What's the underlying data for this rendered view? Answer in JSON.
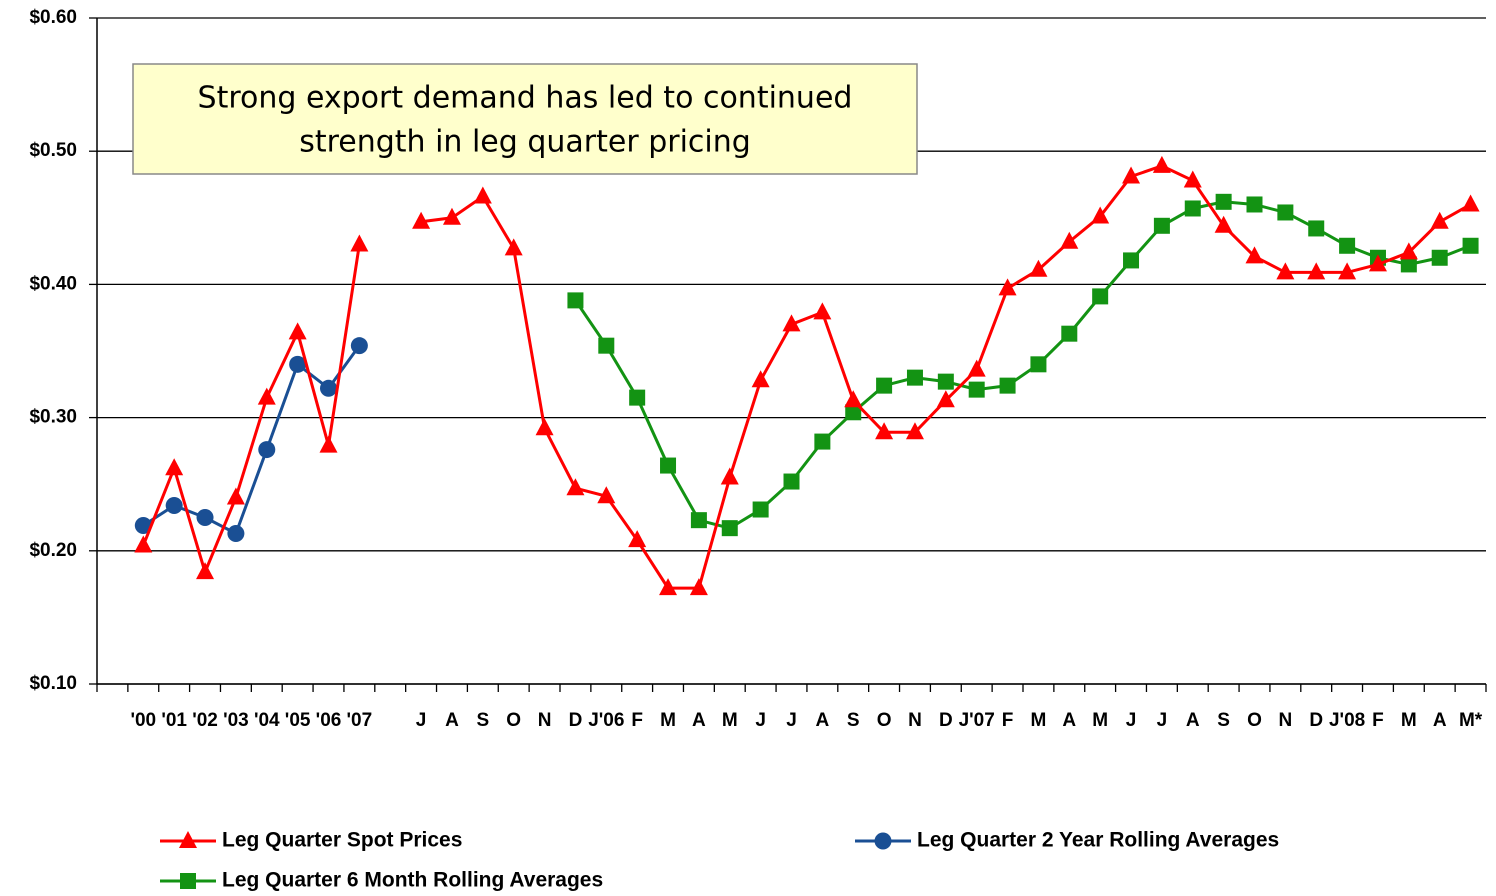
{
  "chart_data": {
    "type": "line",
    "annotation": [
      "Strong export demand has led to continued",
      "strength in leg quarter pricing"
    ],
    "categories": [
      null,
      "'00",
      "'01",
      "'02",
      "'03",
      "'04",
      "'05",
      "'06",
      "'07",
      null,
      "J",
      "A",
      "S",
      "O",
      "N",
      "D",
      "J'06",
      "F",
      "M",
      "A",
      "M",
      "J",
      "J",
      "A",
      "S",
      "O",
      "N",
      "D",
      "J'07",
      "F",
      "M",
      "A",
      "M",
      "J",
      "J",
      "A",
      "S",
      "O",
      "N",
      "D",
      "J'08",
      "F",
      "M",
      "A",
      "M*"
    ],
    "series": [
      {
        "name": "Leg Quarter Spot Prices",
        "color": "#ff0000",
        "marker": "triangle",
        "values": [
          null,
          0.204,
          0.262,
          0.184,
          0.24,
          0.315,
          0.364,
          0.279,
          0.43,
          null,
          0.447,
          0.45,
          0.466,
          0.427,
          0.292,
          0.247,
          0.241,
          0.208,
          0.172,
          0.172,
          0.255,
          0.328,
          0.37,
          0.379,
          0.313,
          0.289,
          0.289,
          0.313,
          0.336,
          0.397,
          0.411,
          0.432,
          0.451,
          0.481,
          0.489,
          0.478,
          0.444,
          0.421,
          0.409,
          0.409,
          0.409,
          0.415,
          0.424,
          0.447,
          0.46
        ]
      },
      {
        "name": "Leg Quarter 2 Year Rolling Averages",
        "color": "#1a4f94",
        "marker": "circle",
        "values": [
          null,
          0.219,
          0.234,
          0.225,
          0.213,
          0.276,
          0.34,
          0.322,
          0.354,
          null,
          null,
          null,
          null,
          null,
          null,
          null,
          null,
          null,
          null,
          null,
          null,
          null,
          null,
          null,
          null,
          null,
          null,
          null,
          null,
          null,
          null,
          null,
          null,
          null,
          null,
          null,
          null,
          null,
          null,
          null,
          null,
          null,
          null,
          null,
          null
        ]
      },
      {
        "name": "Leg Quarter 6 Month Rolling Averages",
        "color": "#139313",
        "marker": "square",
        "values": [
          null,
          null,
          null,
          null,
          null,
          null,
          null,
          null,
          null,
          null,
          null,
          null,
          null,
          null,
          null,
          0.388,
          0.354,
          0.315,
          0.264,
          0.223,
          0.217,
          0.231,
          0.252,
          0.282,
          0.304,
          0.324,
          0.33,
          0.327,
          0.321,
          0.324,
          0.34,
          0.363,
          0.391,
          0.418,
          0.444,
          0.457,
          0.462,
          0.46,
          0.454,
          0.442,
          0.429,
          0.42,
          0.415,
          0.42,
          0.429
        ]
      }
    ],
    "ylim": [
      0.1,
      0.6
    ],
    "yticks": [
      {
        "value": 0.1,
        "label": "$0.10"
      },
      {
        "value": 0.2,
        "label": "$0.20"
      },
      {
        "value": 0.3,
        "label": "$0.30"
      },
      {
        "value": 0.4,
        "label": "$0.40"
      },
      {
        "value": 0.5,
        "label": "$0.50"
      },
      {
        "value": 0.6,
        "label": "$0.60"
      }
    ],
    "grid": true
  }
}
